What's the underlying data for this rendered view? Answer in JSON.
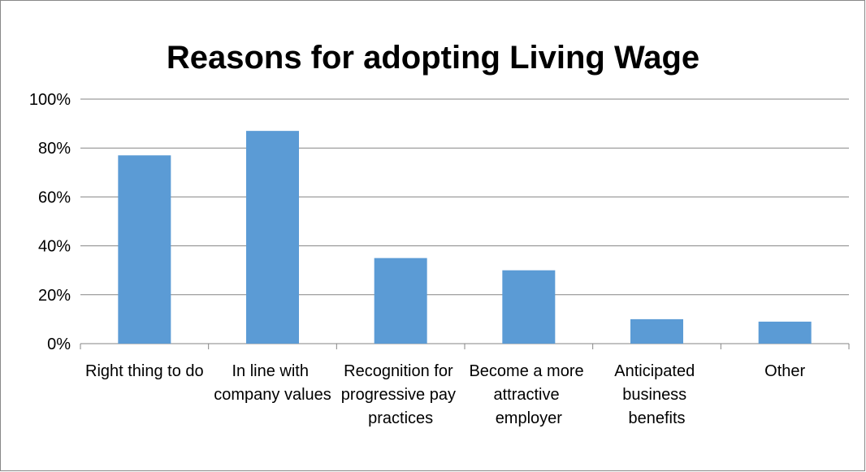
{
  "chart_data": {
    "type": "bar",
    "title": "Reasons for adopting Living Wage",
    "categories": [
      "Right thing to do",
      "In line with company values",
      "Recognition for progressive pay practices",
      "Become a more attractive employer",
      "Anticipated business benefits",
      "Other"
    ],
    "values": [
      77,
      87,
      35,
      30,
      10,
      9
    ],
    "color": "#5b9bd5",
    "ylim": [
      0,
      100
    ],
    "yticks": [
      {
        "value": 0,
        "label": "0%"
      },
      {
        "value": 20,
        "label": "20%"
      },
      {
        "value": 40,
        "label": "40%"
      },
      {
        "value": 60,
        "label": "60%"
      },
      {
        "value": 80,
        "label": "80%"
      },
      {
        "value": 100,
        "label": "100%"
      }
    ],
    "grid": true
  }
}
